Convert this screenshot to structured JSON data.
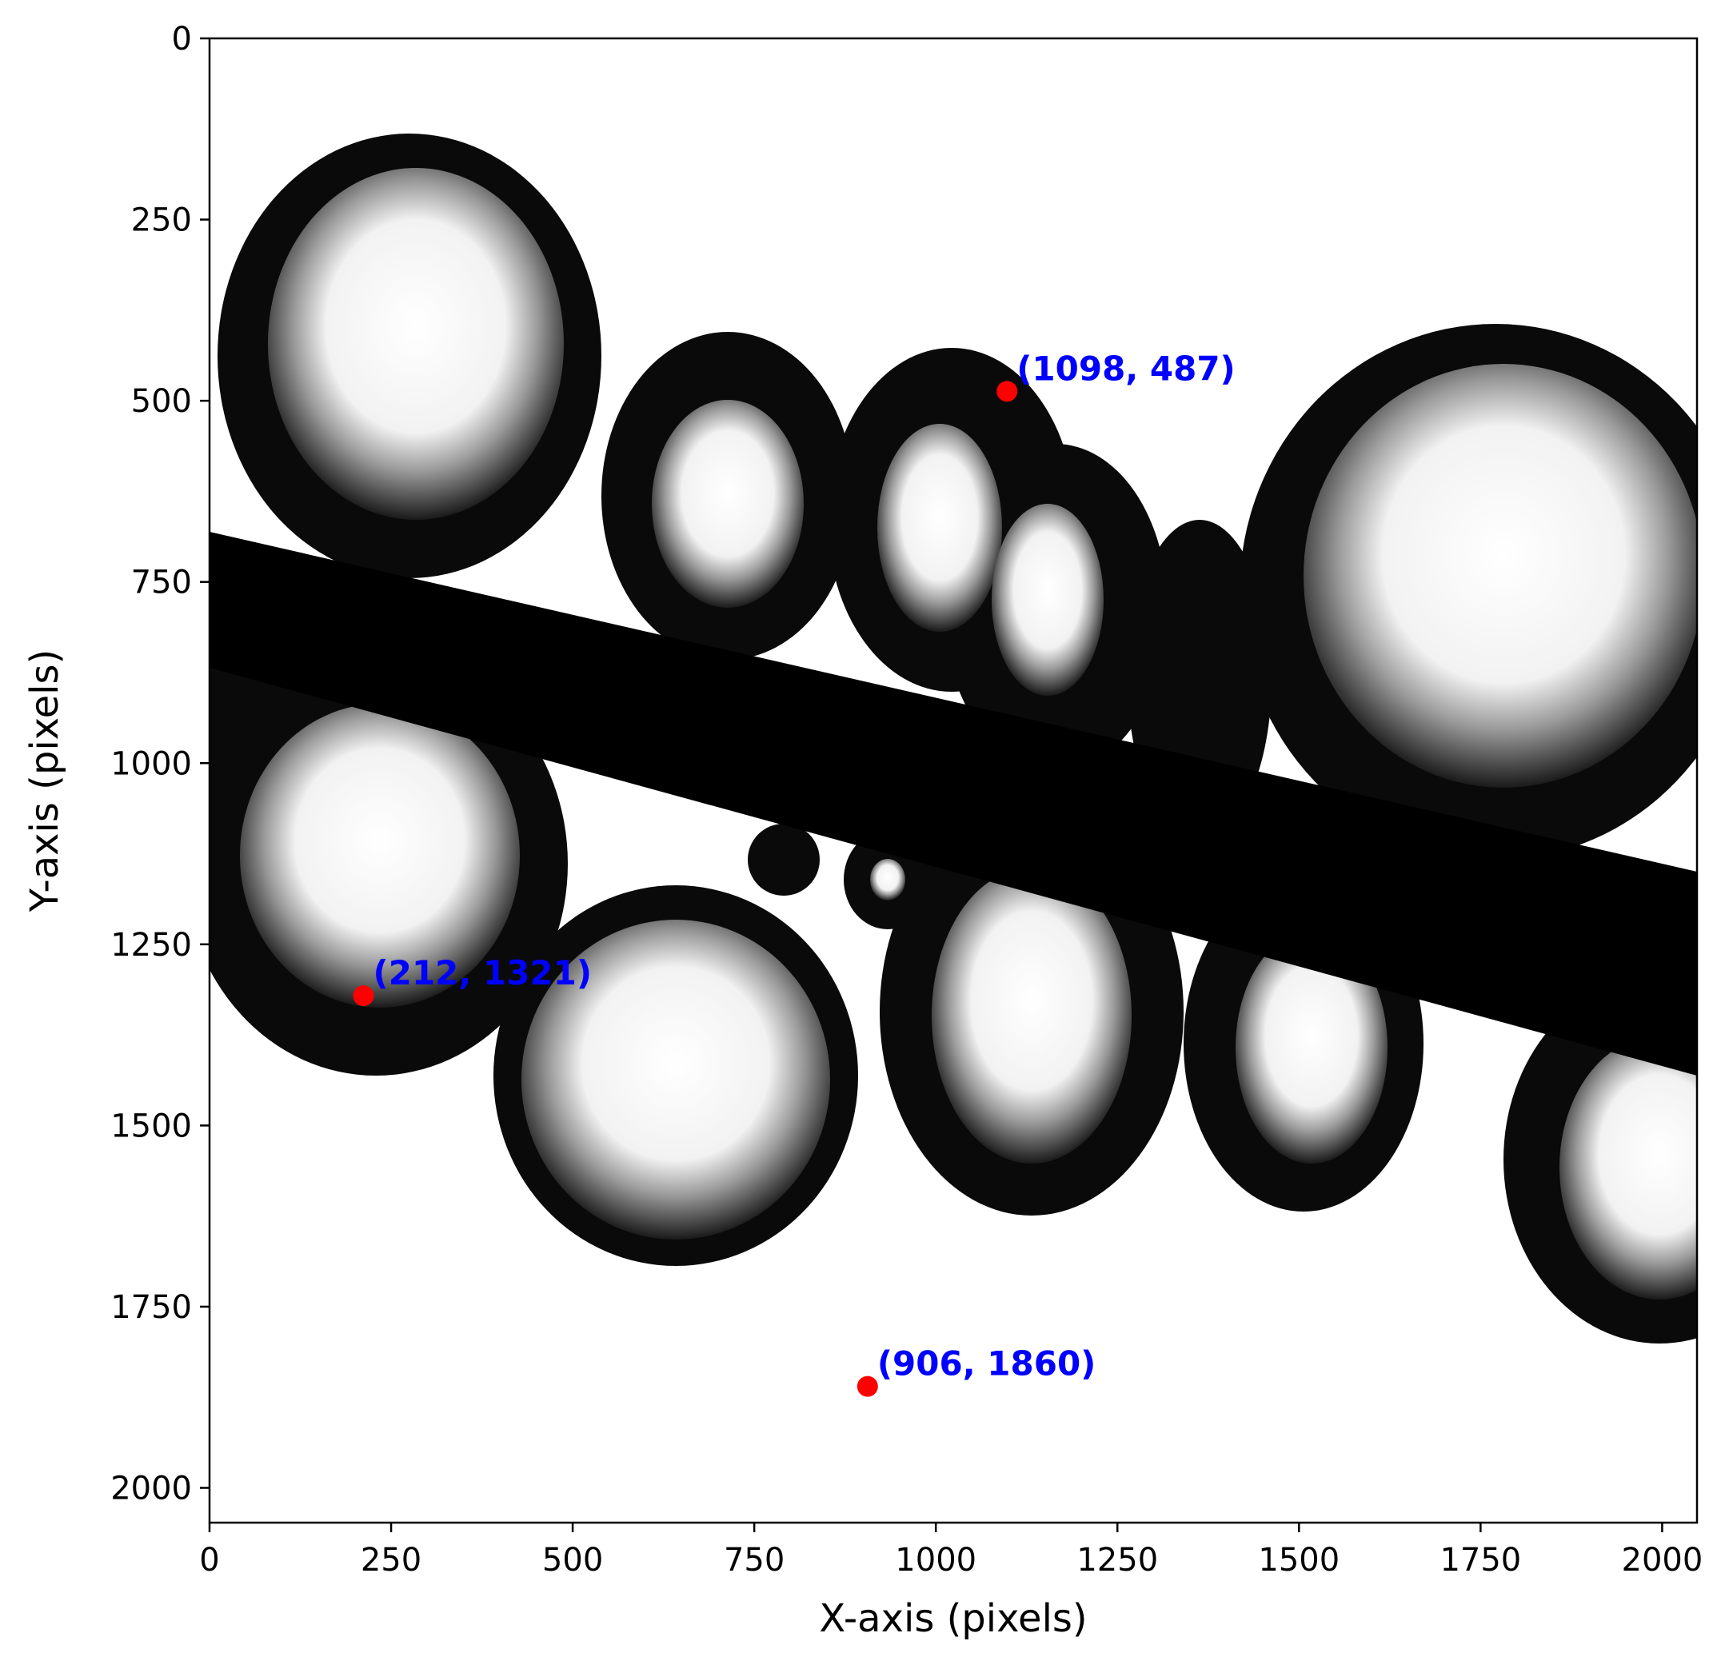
{
  "chart_data": {
    "type": "scatter",
    "title": "",
    "xlabel": "X-axis (pixels)",
    "ylabel": "Y-axis (pixels)",
    "xlim": [
      0,
      2048
    ],
    "ylim": [
      2048,
      0
    ],
    "x_ticks": [
      0,
      250,
      500,
      750,
      1000,
      1250,
      1500,
      1750,
      2000
    ],
    "y_ticks": [
      0,
      250,
      500,
      750,
      1000,
      1250,
      1500,
      1750,
      2000
    ],
    "grid": false,
    "background": "grayscale microscope image of bubbles and a diagonal dark fiber",
    "points": [
      {
        "x": 1098,
        "y": 487,
        "label": "(1098, 487)"
      },
      {
        "x": 212,
        "y": 1321,
        "label": "(212, 1321)"
      },
      {
        "x": 906,
        "y": 1860,
        "label": "(906, 1860)"
      }
    ],
    "colors": {
      "marker": "#ff0000",
      "label": "#0000ff",
      "axis": "#000000"
    }
  }
}
